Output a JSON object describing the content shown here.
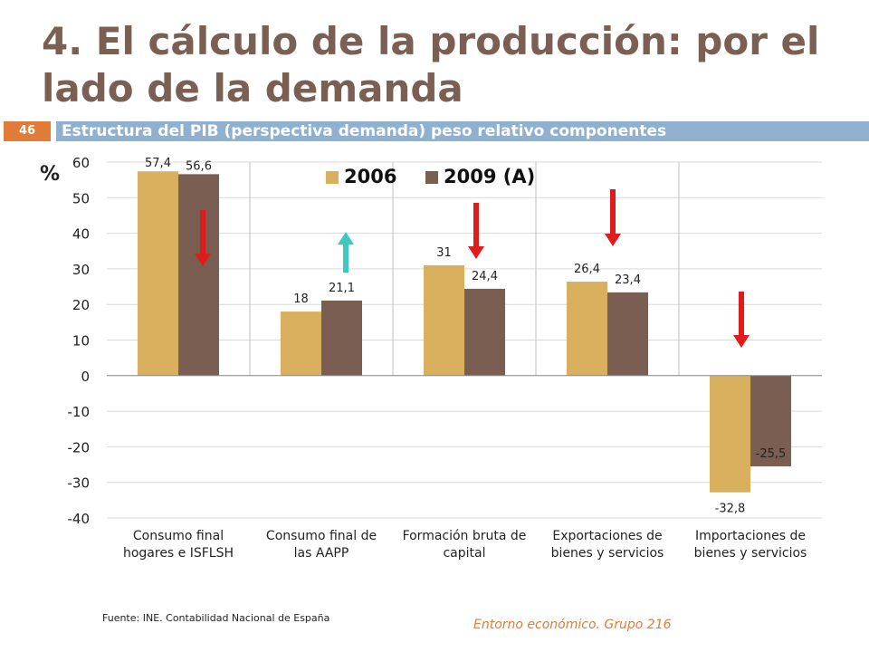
{
  "slide": {
    "title": "4. El cálculo de la producción: por el lado de la demanda",
    "number": "46",
    "subtitle": "Estructura del PIB (perspectiva demanda) peso relativo componentes",
    "source": "Fuente: INE. Contabilidad Nacional de España",
    "entorno": "Entorno económico. Grupo 216"
  },
  "colors": {
    "series_2006": "#d9b15e",
    "series_2009": "#7b5e52",
    "arrow_down": "#e01b1b",
    "arrow_up": "#3cc9c0",
    "title": "#7a5f52",
    "accent": "#e07b39",
    "subtitle_bar": "#8fb0ce"
  },
  "chart_data": {
    "type": "bar",
    "ylabel": "%",
    "ylim": [
      -40,
      60
    ],
    "yticks": [
      60,
      50,
      40,
      30,
      20,
      10,
      0,
      -10,
      -20,
      -30,
      -40
    ],
    "legend_position": "top",
    "grid": true,
    "categories": [
      [
        "Consumo final",
        "hogares e ISFLSH"
      ],
      [
        "Consumo final de",
        "las AAPP"
      ],
      [
        "Formación bruta de",
        "capital"
      ],
      [
        "Exportaciones de",
        "bienes y servicios"
      ],
      [
        "Importaciones de",
        "bienes y servicios"
      ]
    ],
    "series": [
      {
        "name": "2006",
        "values": [
          57.4,
          18,
          31,
          26.4,
          -32.8
        ],
        "labels": [
          "57,4",
          "18",
          "31",
          "26,4",
          "-32,8"
        ]
      },
      {
        "name": "2009 (A)",
        "values": [
          56.6,
          21.1,
          24.4,
          23.4,
          -25.5
        ],
        "labels": [
          "56,6",
          "21,1",
          "24,4",
          "23,4",
          "-25,5"
        ]
      }
    ],
    "annotations": [
      {
        "category": 0,
        "direction": "down"
      },
      {
        "category": 1,
        "direction": "up"
      },
      {
        "category": 2,
        "direction": "down"
      },
      {
        "category": 3,
        "direction": "down"
      },
      {
        "category": 4,
        "direction": "down"
      }
    ]
  }
}
